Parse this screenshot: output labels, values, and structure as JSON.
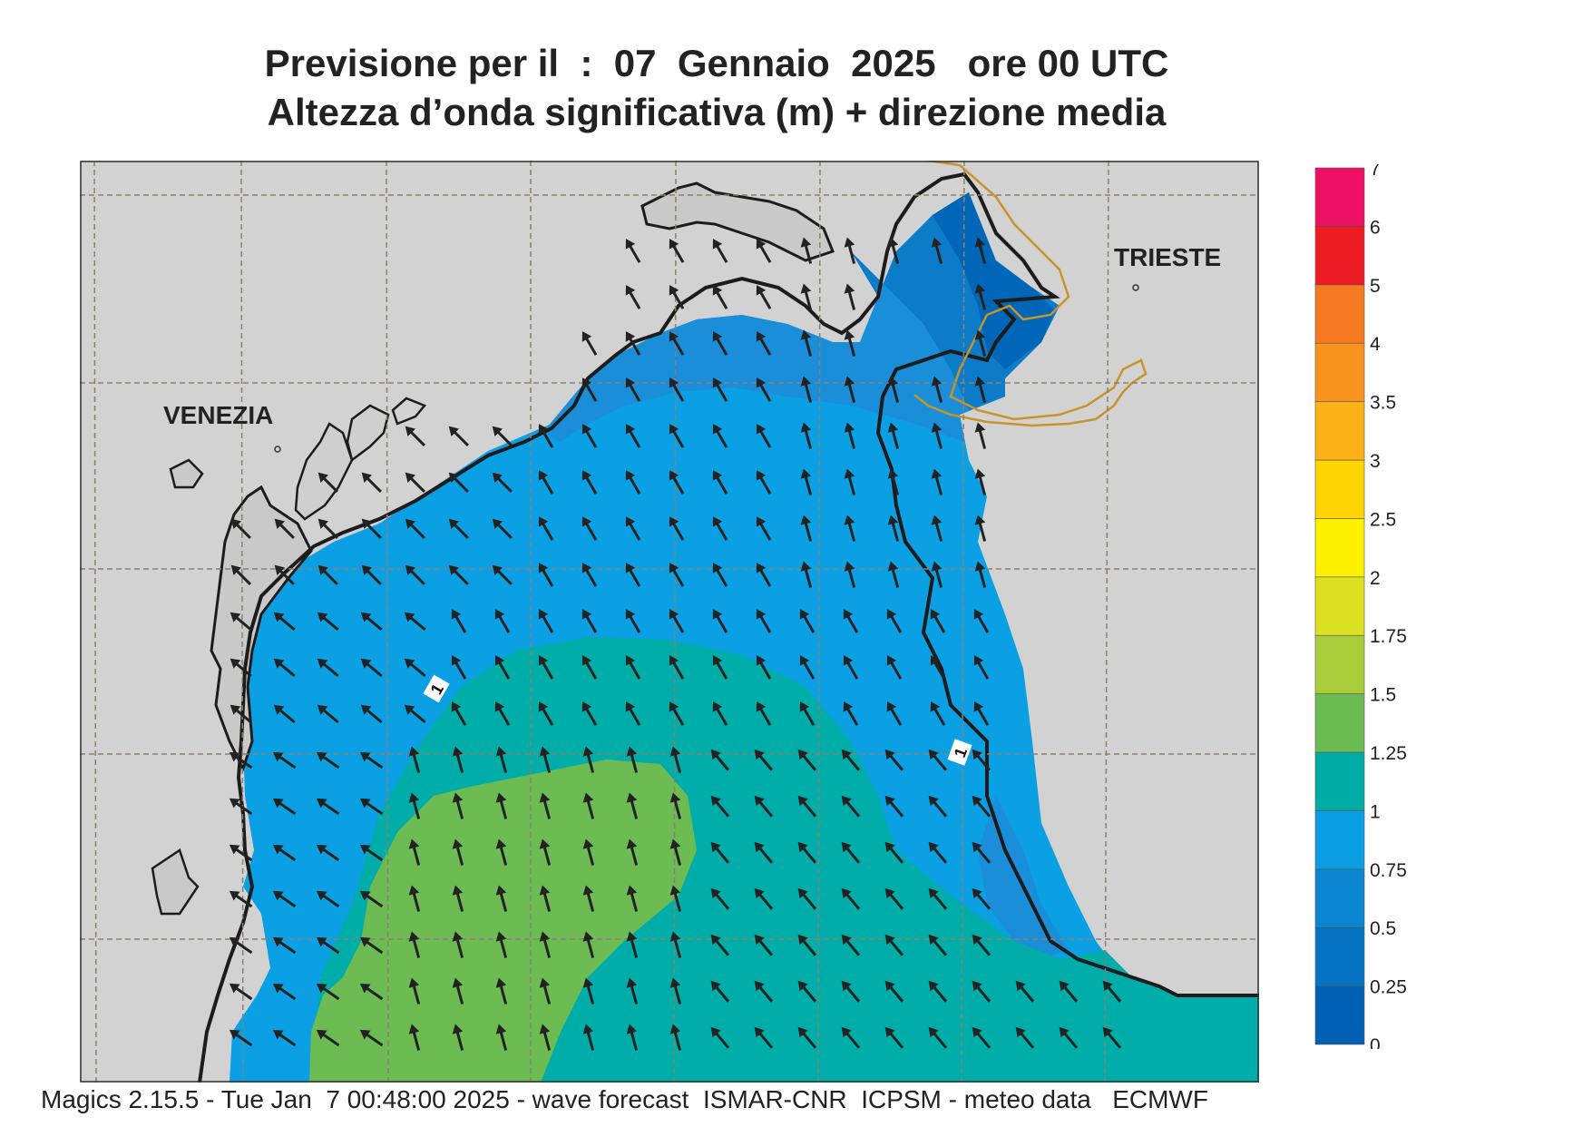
{
  "title": {
    "line1": "Previsione per il  :  07  Gennaio  2025   ore 00 UTC",
    "line2": "Altezza d’onda significativa (m) + direzione media"
  },
  "map": {
    "labels": {
      "venezia": "VENEZIA",
      "trieste": "TRIESTE"
    },
    "contour_labels": [
      "1",
      "1"
    ],
    "colors": {
      "land": "#d2d2d2",
      "band_0_25": "#0066b8",
      "band_25_50": "#0d7cc8",
      "band_50_75": "#1a8ed8",
      "band_75_1": "#0ba0e4",
      "band_1_125": "#00ada8",
      "band_125_15": "#6cbc53",
      "coast": "#1c1c1c",
      "border": "#c8932a",
      "grid": "#8a8070",
      "arrow": "#222222"
    },
    "arrow_direction": "toward NNW"
  },
  "colorbar": {
    "ticks": [
      "0",
      "0.25",
      "0.5",
      "0.75",
      "1",
      "1.25",
      "1.5",
      "1.75",
      "2",
      "2.5",
      "3",
      "3.5",
      "4",
      "5",
      "6",
      "7"
    ],
    "colors": [
      "#0060b4",
      "#0673c2",
      "#0b85d0",
      "#0b9ee3",
      "#00aba5",
      "#6bbb53",
      "#a8cc3a",
      "#dbe020",
      "#fff200",
      "#ffd400",
      "#fcb116",
      "#f7931e",
      "#f47920",
      "#ed1c24",
      "#ee1163"
    ]
  },
  "footer": "Magics 2.15.5 - Tue Jan  7 00:48:00 2025 - wave forecast  ISMAR-CNR  ICPSM - meteo data   ECMWF"
}
